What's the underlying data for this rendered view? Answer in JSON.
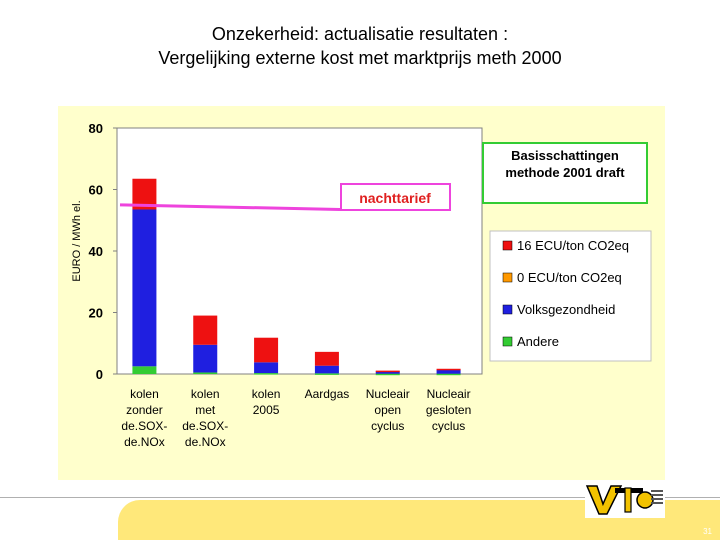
{
  "title_line1": "Onzekerheid: actualisatie resultaten :",
  "title_line2": "Vergelijking externe kost met marktprijs meth 2000",
  "page_number": "31",
  "chart_data": {
    "type": "bar",
    "stacked": true,
    "ylabel": "EURO / MWh el.",
    "ylim": [
      0,
      80
    ],
    "yticks": [
      0,
      20,
      40,
      60,
      80
    ],
    "categories": [
      [
        "kolen",
        "zonder",
        "de.SOX-",
        "de.NOx"
      ],
      [
        "kolen",
        "met",
        "de.SOX-",
        "de.NOx"
      ],
      [
        "kolen",
        "2005"
      ],
      [
        "Aardgas"
      ],
      [
        "Nucleair",
        "open",
        "cyclus"
      ],
      [
        "Nucleair",
        "gesloten",
        "cyclus"
      ]
    ],
    "series": [
      {
        "name": "Andere",
        "color": "#33cc33",
        "values": [
          2.5,
          0.5,
          0.3,
          0.2,
          0.1,
          0.1
        ]
      },
      {
        "name": "Volksgezondheid",
        "color": "#1f1fe0",
        "values": [
          51,
          9,
          3.5,
          2.5,
          0.7,
          1.3
        ]
      },
      {
        "name": "0 ECU/ton CO2eq",
        "color": "#ff9900",
        "values": [
          0,
          0,
          0,
          0,
          0,
          0
        ]
      },
      {
        "name": "16 ECU/ton CO2eq",
        "color": "#ee1111",
        "values": [
          10,
          9.5,
          8,
          4.5,
          0.3,
          0.3
        ]
      }
    ],
    "reference_line": {
      "label": "nachttarief",
      "y_start": 55,
      "y_end": 53.5,
      "color": "#ee44dd"
    },
    "annotation": [
      "Basisschattingen",
      "methode 2001 draft"
    ],
    "legend_order": [
      "16 ECU/ton CO2eq",
      "0 ECU/ton CO2eq",
      "Volksgezondheid",
      "Andere"
    ],
    "legend_placement": "right",
    "grid": false
  }
}
